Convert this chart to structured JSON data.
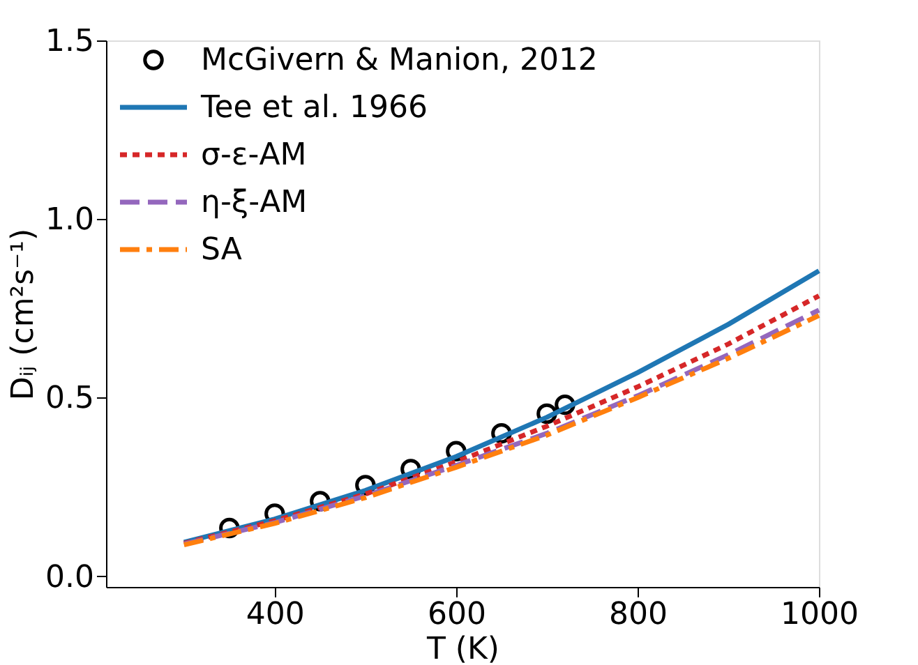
{
  "chart_data": {
    "type": "line",
    "xlabel": "T (K)",
    "ylabel": "Dᵢⱼ (cm²s⁻¹)",
    "xlim": [
      214,
      1000
    ],
    "ylim": [
      -0.03,
      1.5
    ],
    "xticks": [
      400,
      600,
      800,
      1000
    ],
    "yticks": [
      {
        "value": 0,
        "label": "0.0"
      },
      0.5,
      {
        "value": 1,
        "label": "1.0"
      },
      1.5
    ],
    "grid": false,
    "legend": "top left",
    "series": [
      {
        "name": "McGivern & Manion, 2012",
        "type": "scatter",
        "marker": "circle",
        "color": "#000000",
        "x": [
          350,
          400,
          450,
          500,
          550,
          600,
          650,
          700,
          720
        ],
        "values": [
          0.135,
          0.175,
          0.21,
          0.255,
          0.3,
          0.35,
          0.4,
          0.455,
          0.48
        ]
      },
      {
        "name": "Tee et al. 1966",
        "type": "line",
        "line_style": "solid",
        "color": "#1f77b4",
        "x": [
          300,
          400,
          500,
          600,
          700,
          800,
          900,
          1000
        ],
        "values": [
          0.095,
          0.16,
          0.24,
          0.335,
          0.445,
          0.57,
          0.705,
          0.855
        ]
      },
      {
        "name": "σ-ε-AM",
        "type": "line",
        "line_style": "dotted",
        "color": "#d62728",
        "x": [
          300,
          400,
          500,
          600,
          700,
          800,
          900,
          1000
        ],
        "values": [
          0.092,
          0.155,
          0.23,
          0.32,
          0.42,
          0.53,
          0.65,
          0.785
        ]
      },
      {
        "name": "η-ξ-AM",
        "type": "line",
        "line_style": "dashed",
        "color": "#9467bd",
        "x": [
          300,
          400,
          500,
          600,
          700,
          800,
          900,
          1000
        ],
        "values": [
          0.09,
          0.15,
          0.225,
          0.31,
          0.4,
          0.505,
          0.62,
          0.745
        ]
      },
      {
        "name": "SA",
        "type": "line",
        "line_style": "dashdot",
        "color": "#ff7f0e",
        "x": [
          300,
          400,
          500,
          600,
          700,
          800,
          900,
          1000
        ],
        "values": [
          0.088,
          0.148,
          0.22,
          0.305,
          0.395,
          0.5,
          0.61,
          0.73
        ]
      }
    ]
  }
}
